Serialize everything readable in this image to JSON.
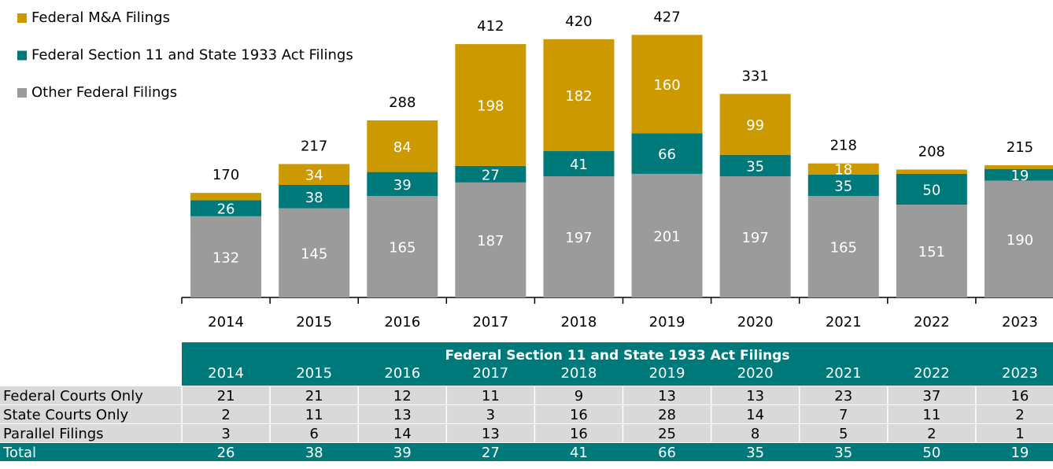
{
  "chart_data": {
    "type": "stacked_bar",
    "categories": [
      "2014",
      "2015",
      "2016",
      "2017",
      "2018",
      "2019",
      "2020",
      "2021",
      "2022",
      "2023"
    ],
    "series": [
      {
        "name": "Federal M&A Filings",
        "color": "#cc9900",
        "values": [
          12,
          34,
          84,
          198,
          182,
          160,
          99,
          18,
          7,
          6
        ],
        "value_labels": [
          null,
          "34",
          "84",
          "198",
          "182",
          "160",
          "99",
          "18",
          null,
          null
        ]
      },
      {
        "name": "Federal Section 11 and State 1933 Act Filings",
        "color": "#00797a",
        "values": [
          26,
          38,
          39,
          27,
          41,
          66,
          35,
          35,
          50,
          19
        ]
      },
      {
        "name": "Other Federal Filings",
        "color": "#9b9b9b",
        "values": [
          132,
          145,
          165,
          187,
          197,
          201,
          197,
          165,
          151,
          190
        ]
      }
    ],
    "totals": [
      170,
      217,
      288,
      412,
      420,
      427,
      331,
      218,
      208,
      215
    ],
    "ylim": [
      0,
      430
    ],
    "legend": "top-left"
  },
  "table": {
    "title": "Federal Section 11 and State 1933 Act Filings",
    "rows": [
      {
        "label": "Federal Courts Only",
        "values": [
          21,
          21,
          12,
          11,
          9,
          13,
          13,
          23,
          37,
          16
        ]
      },
      {
        "label": "State Courts Only",
        "values": [
          2,
          11,
          13,
          3,
          16,
          28,
          14,
          7,
          11,
          2
        ]
      },
      {
        "label": "Parallel Filings",
        "values": [
          3,
          6,
          14,
          13,
          16,
          25,
          8,
          5,
          2,
          1
        ]
      }
    ],
    "total_label": "Total"
  }
}
